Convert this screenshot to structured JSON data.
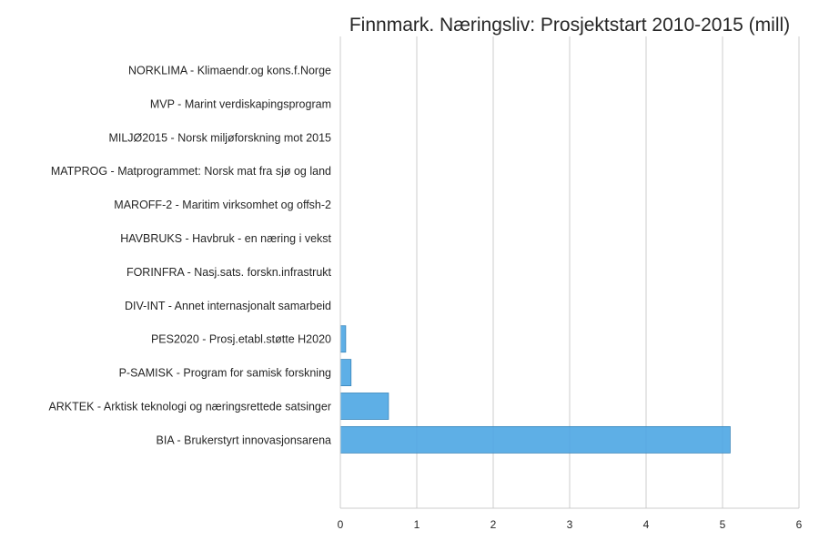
{
  "chart_data": {
    "type": "bar",
    "orientation": "horizontal",
    "title": "Finnmark. Næringsliv: Prosjektstart 2010-2015 (mill)",
    "xlabel": "",
    "ylabel": "",
    "xlim": [
      0,
      6
    ],
    "x_ticks": [
      "0",
      "1",
      "2",
      "3",
      "4",
      "5",
      "6"
    ],
    "grid": "vertical",
    "legend": "none",
    "bar_color": "#4da6e3",
    "categories": [
      "NORKLIMA - Klimaendr.og kons.f.Norge",
      "MVP - Marint verdiskapingsprogram",
      "MILJØ2015 - Norsk miljøforskning mot 2015",
      "MATPROG - Matprogrammet: Norsk mat fra sjø og land",
      "MAROFF-2 - Maritim virksomhet og offsh-2",
      "HAVBRUKS - Havbruk - en næring i vekst",
      "FORINFRA - Nasj.sats. forskn.infrastrukt",
      "DIV-INT - Annet internasjonalt samarbeid",
      "PES2020 - Prosj.etabl.støtte H2020",
      "P-SAMISK - Program for samisk forskning",
      "ARKTEK - Arktisk teknologi og næringsrettede satsinger",
      "BIA - Brukerstyrt innovasjonsarena"
    ],
    "values": [
      0.0,
      0.0,
      0.0,
      0.0,
      0.0,
      0.0,
      0.0,
      0.0,
      0.07,
      0.14,
      0.63,
      5.1
    ]
  }
}
